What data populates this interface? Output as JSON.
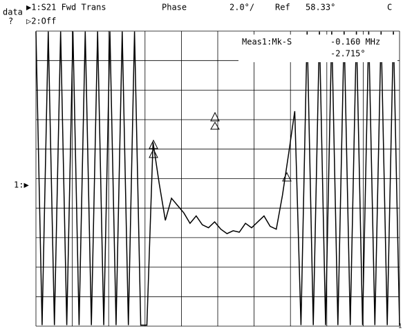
{
  "header": {
    "data_label": "data",
    "query": "?",
    "channel1": "▶1:S21 Fwd Trans",
    "format": "Phase",
    "scale": "2.0°/",
    "ref_label": "Ref",
    "ref_value": "58.33°",
    "coupling": "C",
    "channel2": "▷2:Off"
  },
  "marker_readout": {
    "title": "Meas1:Mk-S",
    "frequency": "-0.160 MHz",
    "phase": "-2.715°"
  },
  "ref_marker": "1:▶",
  "corner_label": "1",
  "chart_data": {
    "type": "line",
    "ylim": [
      48.33,
      68.33
    ],
    "color": "#000000",
    "values": [
      68.3,
      48.4,
      68.3,
      48.4,
      68.3,
      48.4,
      68.3,
      48.4,
      68.3,
      48.4,
      68.3,
      48.4,
      68.3,
      48.4,
      68.3,
      48.4,
      68.3,
      48.4,
      48.4,
      60.8,
      58.0,
      55.5,
      57.0,
      56.5,
      56.0,
      55.3,
      55.8,
      55.2,
      55.0,
      55.4,
      54.9,
      54.6,
      54.8,
      54.7,
      55.3,
      55.0,
      55.4,
      55.8,
      55.1,
      54.9,
      57.2,
      60.0,
      62.9,
      48.4,
      68.3,
      48.4,
      68.3,
      48.4,
      68.3,
      48.4,
      68.3,
      48.4,
      68.3,
      48.4,
      68.3,
      48.4,
      68.3,
      48.4,
      68.3,
      48.4
    ]
  }
}
